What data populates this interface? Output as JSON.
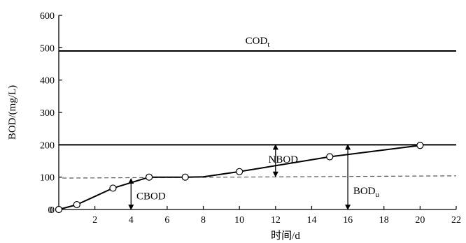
{
  "chart_data": {
    "type": "line",
    "title": "",
    "xlabel": "时间/d",
    "ylabel": "BOD/(mg/L)",
    "xlim": [
      0,
      22
    ],
    "ylim": [
      0,
      600
    ],
    "xticks": [
      2,
      4,
      6,
      8,
      10,
      12,
      14,
      16,
      18,
      20,
      22
    ],
    "yticks": [
      0,
      100,
      200,
      300,
      400,
      500,
      600
    ],
    "x_tick_labels": [
      "2",
      "4",
      "6",
      "8",
      "10",
      "12",
      "14",
      "16",
      "18",
      "20",
      "22"
    ],
    "y_tick_labels": [
      "0",
      "100",
      "200",
      "300",
      "400",
      "500",
      "600"
    ],
    "origin_x_label": "0",
    "grid": false,
    "series": [
      {
        "values": [
          {
            "x": 0,
            "y": 0
          },
          {
            "x": 1,
            "y": 15
          },
          {
            "x": 3,
            "y": 66
          },
          {
            "x": 5,
            "y": 100
          },
          {
            "x": 7,
            "y": 100
          },
          {
            "x": 10,
            "y": 117
          },
          {
            "x": 15,
            "y": 163
          },
          {
            "x": 20,
            "y": 198
          }
        ],
        "curve_path": [
          {
            "x": 0,
            "y": 0
          },
          {
            "x": 1,
            "y": 15
          },
          {
            "x": 3,
            "y": 66
          },
          {
            "x": 5,
            "y": 100
          },
          {
            "x": 7,
            "y": 100
          },
          {
            "x": 8,
            "y": 101
          },
          {
            "x": 10,
            "y": 117
          },
          {
            "x": 15,
            "y": 163
          },
          {
            "x": 20,
            "y": 198
          }
        ]
      }
    ],
    "reference_lines": [
      {
        "label_main": "COD",
        "label_sub": "t",
        "y": 490,
        "style": "solid",
        "label_at_x": 11
      },
      {
        "y": 200,
        "style": "solid"
      },
      {
        "x_start": 0.2,
        "x_end": 22,
        "y_start": 97,
        "y_end": 104,
        "style": "dashed"
      }
    ],
    "annotations": [
      {
        "label_main": "CBOD",
        "label_sub": "",
        "arrow_x": 4,
        "y_from": 0,
        "y_to": 95,
        "label_x": 4.3,
        "label_y": 42
      },
      {
        "label_main": "NBOD",
        "label_sub": "",
        "arrow_x": 12,
        "y_from": 102,
        "y_to": 200,
        "label_x": 11.6,
        "label_y": 155
      },
      {
        "label_main": "BOD",
        "label_sub": "u",
        "arrow_x": 16,
        "y_from": 0,
        "y_to": 200,
        "label_x": 16.3,
        "label_y": 58
      }
    ],
    "colors": {
      "line": "#000000",
      "dashed": "#555555",
      "marker_fill": "#ffffff"
    }
  }
}
